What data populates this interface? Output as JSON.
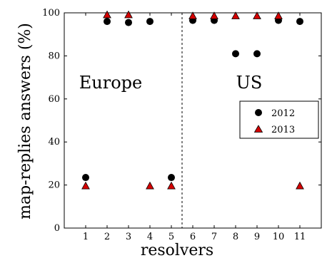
{
  "chart_data": {
    "type": "scatter",
    "title": "",
    "xlabel": "resolvers",
    "ylabel": "map-replies answers (%)",
    "x_ticks": [
      1,
      2,
      3,
      4,
      5,
      6,
      7,
      8,
      9,
      10,
      11
    ],
    "y_ticks": [
      0,
      20,
      40,
      60,
      80,
      100
    ],
    "xlim": [
      0,
      12
    ],
    "ylim": [
      0,
      100
    ],
    "grid": false,
    "divider_x": 5.5,
    "region_labels": [
      "Europe",
      "US"
    ],
    "legend_position": "center-right",
    "series": [
      {
        "name": "2012",
        "marker": "circle",
        "color": "#000000",
        "points": [
          [
            1,
            23.5
          ],
          [
            2,
            96
          ],
          [
            3,
            95.5
          ],
          [
            4,
            96
          ],
          [
            5,
            23.5
          ],
          [
            6,
            96.5
          ],
          [
            7,
            96.5
          ],
          [
            8,
            81
          ],
          [
            9,
            81
          ],
          [
            10,
            96.5
          ],
          [
            11,
            96
          ]
        ]
      },
      {
        "name": "2013",
        "marker": "triangle",
        "color": "#d40000",
        "points": [
          [
            1,
            19.5
          ],
          [
            2,
            99
          ],
          [
            3,
            99
          ],
          [
            4,
            19.5
          ],
          [
            5,
            19.5
          ],
          [
            6,
            98.5
          ],
          [
            7,
            98.5
          ],
          [
            8,
            98.5
          ],
          [
            9,
            98.5
          ],
          [
            10,
            98.5
          ],
          [
            11,
            19.5
          ]
        ]
      }
    ]
  }
}
